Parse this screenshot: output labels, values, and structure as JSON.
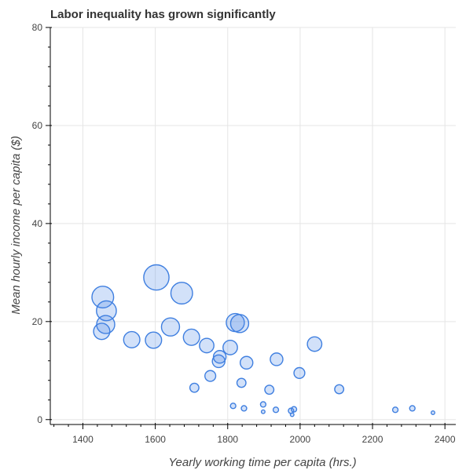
{
  "chart_data": {
    "type": "scatter",
    "title": "Labor inequality has grown significantly",
    "xlabel": "Yearly working time per capita (hrs.)",
    "ylabel": "Mean hourly income per capita ($)",
    "xlim": [
      1310,
      2430
    ],
    "ylim": [
      -1,
      80
    ],
    "x_ticks": [
      1400,
      1600,
      1800,
      2000,
      2200,
      2400
    ],
    "y_ticks": [
      0,
      20,
      40,
      60,
      80
    ],
    "grid": true,
    "colors": {
      "point_fill": "#4a86e8",
      "point_stroke": "#3f7fe0"
    },
    "points": [
      {
        "x": 1455,
        "y": 25.0,
        "size": 12
      },
      {
        "x": 1465,
        "y": 22.2,
        "size": 11
      },
      {
        "x": 1463,
        "y": 19.4,
        "size": 10
      },
      {
        "x": 1452,
        "y": 18.0,
        "size": 9
      },
      {
        "x": 1535,
        "y": 16.3,
        "size": 9
      },
      {
        "x": 1595,
        "y": 16.2,
        "size": 9
      },
      {
        "x": 1603,
        "y": 29.0,
        "size": 14
      },
      {
        "x": 1642,
        "y": 18.9,
        "size": 10
      },
      {
        "x": 1673,
        "y": 25.8,
        "size": 12
      },
      {
        "x": 1700,
        "y": 16.8,
        "size": 9
      },
      {
        "x": 1742,
        "y": 15.1,
        "size": 8
      },
      {
        "x": 1708,
        "y": 6.5,
        "size": 5
      },
      {
        "x": 1752,
        "y": 8.9,
        "size": 6
      },
      {
        "x": 1775,
        "y": 11.9,
        "size": 7
      },
      {
        "x": 1778,
        "y": 12.8,
        "size": 7
      },
      {
        "x": 1807,
        "y": 14.7,
        "size": 8
      },
      {
        "x": 1821,
        "y": 19.8,
        "size": 10
      },
      {
        "x": 1833,
        "y": 19.6,
        "size": 10
      },
      {
        "x": 1852,
        "y": 11.6,
        "size": 7
      },
      {
        "x": 1838,
        "y": 7.5,
        "size": 5
      },
      {
        "x": 1815,
        "y": 2.8,
        "size": 3
      },
      {
        "x": 1845,
        "y": 2.3,
        "size": 3
      },
      {
        "x": 1898,
        "y": 3.1,
        "size": 3
      },
      {
        "x": 1898,
        "y": 1.6,
        "size": 2
      },
      {
        "x": 1915,
        "y": 6.1,
        "size": 5
      },
      {
        "x": 1935,
        "y": 12.3,
        "size": 7
      },
      {
        "x": 1933,
        "y": 2.0,
        "size": 3
      },
      {
        "x": 1975,
        "y": 1.8,
        "size": 3
      },
      {
        "x": 1983,
        "y": 2.1,
        "size": 3
      },
      {
        "x": 1978,
        "y": 1.0,
        "size": 2
      },
      {
        "x": 1998,
        "y": 9.5,
        "size": 6
      },
      {
        "x": 2040,
        "y": 15.4,
        "size": 8
      },
      {
        "x": 2108,
        "y": 6.2,
        "size": 5
      },
      {
        "x": 2263,
        "y": 2.0,
        "size": 3
      },
      {
        "x": 2310,
        "y": 2.3,
        "size": 3
      },
      {
        "x": 2367,
        "y": 1.4,
        "size": 2
      }
    ]
  }
}
